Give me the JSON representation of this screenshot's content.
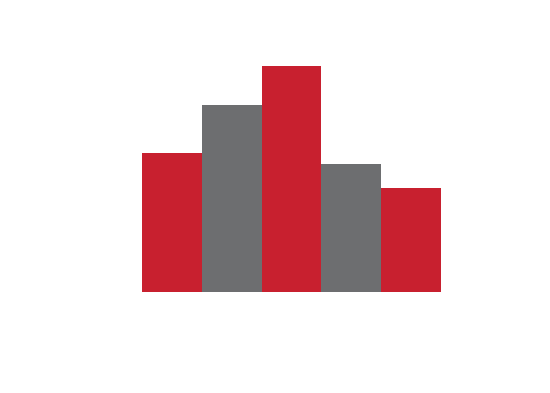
{
  "chart_data": {
    "type": "bar",
    "categories": [
      null,
      null,
      null,
      null,
      null
    ],
    "values": [
      4.63,
      6.23,
      7.53,
      4.27,
      3.47
    ],
    "colors": [
      "#c8202f",
      "#6d6e70",
      "#c8202f",
      "#6d6e70",
      "#c8202f"
    ],
    "ylim": [
      0,
      8
    ],
    "yticks": [
      0,
      1,
      2,
      3,
      4,
      5,
      6,
      7,
      8
    ],
    "grid": true,
    "tick_labels": false
  }
}
